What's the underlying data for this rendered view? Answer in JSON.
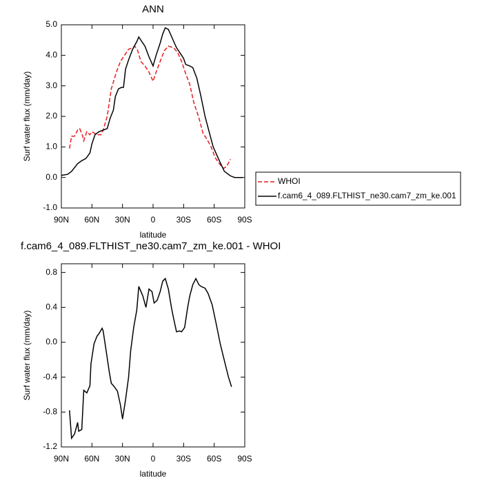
{
  "chart_data": [
    {
      "type": "line",
      "title": "ANN",
      "xlabel": "latitude",
      "ylabel": "Surf water flux (mm/day)",
      "xlim": [
        90,
        -90
      ],
      "ylim": [
        -1,
        5
      ],
      "xticks": [
        {
          "value": 90,
          "label": "90N"
        },
        {
          "value": 60,
          "label": "60N"
        },
        {
          "value": 30,
          "label": "30N"
        },
        {
          "value": 0,
          "label": "0"
        },
        {
          "value": -30,
          "label": "30S"
        },
        {
          "value": -60,
          "label": "60S"
        },
        {
          "value": -90,
          "label": "90S"
        }
      ],
      "yticks": [
        {
          "value": 5,
          "label": "5.0"
        },
        {
          "value": 4,
          "label": "4.0"
        },
        {
          "value": 3,
          "label": "3.0"
        },
        {
          "value": 2,
          "label": "2.0"
        },
        {
          "value": 1,
          "label": "1.0"
        },
        {
          "value": 0,
          "label": "0.0"
        },
        {
          "value": -1,
          "label": "-1.0"
        }
      ],
      "legend": "right",
      "series": [
        {
          "name": "WHOI",
          "color": "#e8191c",
          "line_style": "dashed",
          "x": [
            82,
            80,
            77,
            74,
            72,
            69,
            68,
            65,
            62,
            60,
            55,
            51,
            49,
            45,
            41,
            36,
            32,
            28,
            24,
            20,
            18,
            15,
            12,
            8,
            4,
            0,
            -3,
            -7,
            -11,
            -15,
            -20,
            -24,
            -28,
            -32,
            -36,
            -40,
            -45,
            -49,
            -53,
            -57,
            -61,
            -65,
            -69,
            -72,
            -76
          ],
          "values": [
            0.95,
            1.35,
            1.35,
            1.55,
            1.6,
            1.35,
            1.2,
            1.5,
            1.4,
            1.5,
            1.4,
            1.4,
            1.55,
            2.0,
            2.9,
            3.45,
            3.8,
            4.0,
            4.2,
            4.25,
            4.3,
            4.15,
            3.8,
            3.65,
            3.45,
            3.15,
            3.45,
            3.8,
            4.15,
            4.3,
            4.25,
            4.1,
            3.8,
            3.4,
            3.05,
            2.45,
            1.95,
            1.45,
            1.25,
            1.0,
            0.65,
            0.45,
            0.3,
            0.35,
            0.6
          ]
        },
        {
          "name": "f.cam6_4_089.FLTHIST_ne30.cam7_zm_ke.001",
          "color": "#000000",
          "line_style": "solid",
          "x": [
            90,
            84,
            80,
            74,
            70,
            66,
            62,
            60,
            57,
            53,
            49,
            45,
            42,
            39,
            37,
            34,
            31,
            29,
            27,
            24,
            20,
            16,
            14,
            11,
            8,
            4,
            0,
            -3,
            -7,
            -9.5,
            -12,
            -15,
            -19,
            -23,
            -27,
            -30,
            -32,
            -36,
            -39,
            -43,
            -47,
            -51,
            -55,
            -59,
            -65,
            -70,
            -76,
            -80,
            -88
          ],
          "values": [
            0.07,
            0.1,
            0.2,
            0.45,
            0.55,
            0.62,
            0.8,
            1.1,
            1.4,
            1.5,
            1.55,
            1.6,
            1.95,
            2.2,
            2.65,
            2.9,
            2.95,
            2.95,
            3.55,
            3.85,
            4.2,
            4.45,
            4.6,
            4.45,
            4.3,
            3.95,
            3.65,
            4.0,
            4.4,
            4.7,
            4.9,
            4.85,
            4.55,
            4.25,
            4.05,
            3.9,
            3.7,
            3.65,
            3.6,
            3.25,
            2.65,
            2.0,
            1.5,
            1.0,
            0.55,
            0.2,
            0.05,
            0.0,
            0.0
          ]
        }
      ]
    },
    {
      "type": "line",
      "title": "f.cam6_4_089.FLTHIST_ne30.cam7_zm_ke.001 - WHOI",
      "xlabel": "latitude",
      "ylabel": "Surf water flux (mm/day)",
      "xlim": [
        90,
        -90
      ],
      "ylim": [
        -1.2,
        0.9
      ],
      "xticks": [
        {
          "value": 90,
          "label": "90N"
        },
        {
          "value": 60,
          "label": "60N"
        },
        {
          "value": 30,
          "label": "30N"
        },
        {
          "value": 0,
          "label": "0"
        },
        {
          "value": -30,
          "label": "30S"
        },
        {
          "value": -60,
          "label": "60S"
        },
        {
          "value": -90,
          "label": "90S"
        }
      ],
      "yticks": [
        0.8,
        0.4,
        {
          "value": 0,
          "label": "0.0"
        },
        -0.4,
        -0.8,
        -1.2
      ],
      "series": [
        {
          "color": "#000000",
          "line_style": "solid",
          "x": [
            82,
            80,
            77,
            74,
            73,
            70,
            68,
            65,
            62,
            61,
            58,
            55,
            53,
            50,
            49,
            46,
            43,
            41,
            38,
            35,
            32,
            30,
            27,
            24,
            22,
            19,
            16,
            14,
            10,
            7,
            4,
            1,
            -1,
            -4,
            -7,
            -9.5,
            -12,
            -15,
            -18,
            -20,
            -23,
            -26,
            -28,
            -31,
            -34,
            -36,
            -39,
            -42,
            -45,
            -47,
            -51,
            -54,
            -58,
            -62,
            -66,
            -70,
            -74,
            -77
          ],
          "values": [
            -0.78,
            -1.1,
            -1.05,
            -0.92,
            -1.02,
            -1.0,
            -0.55,
            -0.58,
            -0.5,
            -0.25,
            -0.02,
            0.07,
            0.1,
            0.16,
            0.13,
            -0.1,
            -0.34,
            -0.47,
            -0.51,
            -0.56,
            -0.72,
            -0.88,
            -0.66,
            -0.4,
            -0.1,
            0.17,
            0.37,
            0.64,
            0.53,
            0.4,
            0.61,
            0.58,
            0.45,
            0.48,
            0.58,
            0.7,
            0.73,
            0.61,
            0.4,
            0.28,
            0.12,
            0.13,
            0.12,
            0.17,
            0.4,
            0.53,
            0.66,
            0.73,
            0.66,
            0.64,
            0.62,
            0.56,
            0.43,
            0.21,
            -0.02,
            -0.21,
            -0.4,
            -0.51
          ]
        }
      ]
    }
  ]
}
